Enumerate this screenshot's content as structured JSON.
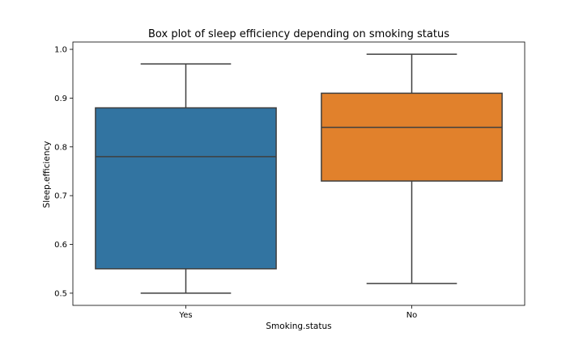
{
  "chart_data": {
    "type": "box",
    "title": "Box plot of sleep efficiency depending on smoking status",
    "xlabel": "Smoking.status",
    "ylabel": "Sleep.efficiency",
    "ylim": [
      0.475,
      1.015
    ],
    "yticks": [
      "0.5",
      "0.6",
      "0.7",
      "0.8",
      "0.9",
      "1.0"
    ],
    "grid": false,
    "categories": [
      "Yes",
      "No"
    ],
    "boxes": [
      {
        "category": "Yes",
        "whisker_low": 0.5,
        "q1": 0.55,
        "median": 0.78,
        "q3": 0.88,
        "whisker_high": 0.97,
        "color": "#3274a1"
      },
      {
        "category": "No",
        "whisker_low": 0.52,
        "q1": 0.73,
        "median": 0.84,
        "q3": 0.91,
        "whisker_high": 0.99,
        "color": "#e1812c"
      }
    ],
    "line_color": "#3f3f3f"
  }
}
